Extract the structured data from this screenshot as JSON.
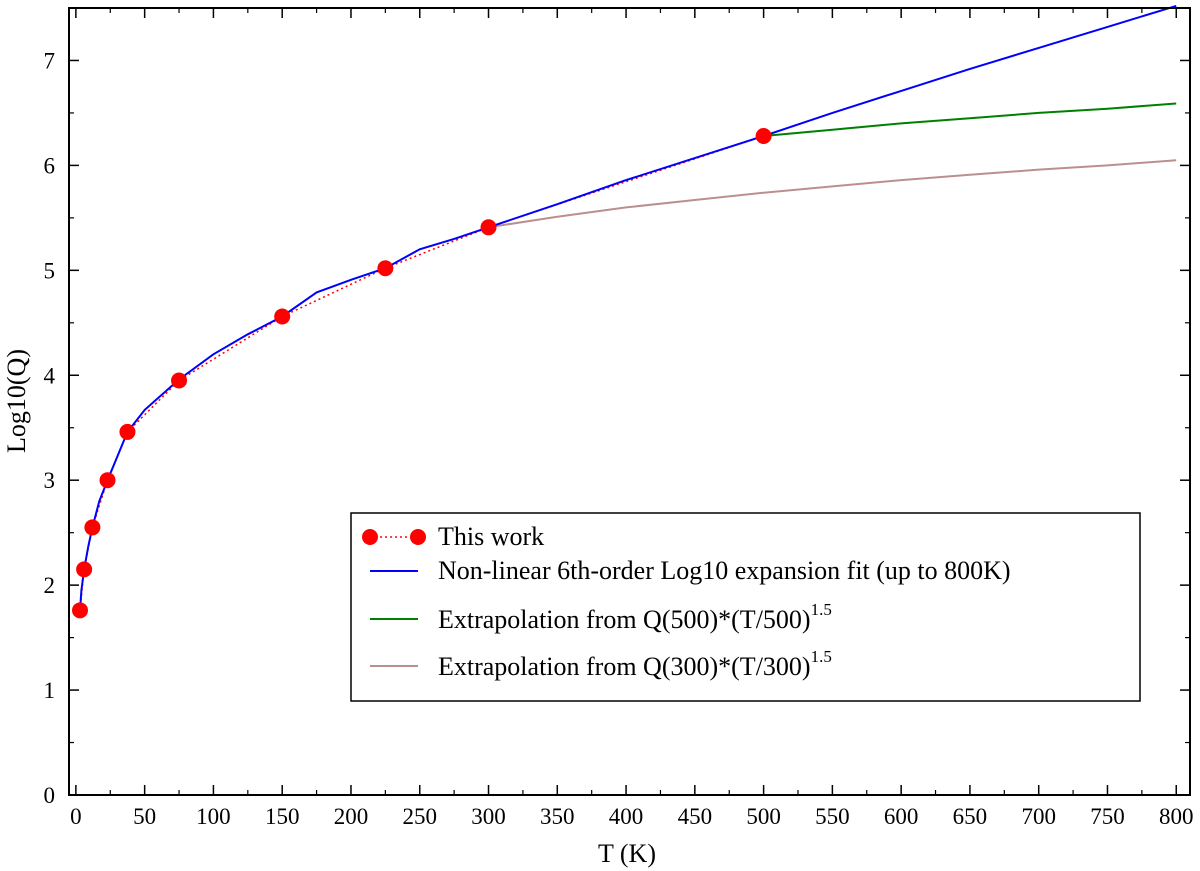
{
  "chart_data": {
    "type": "line",
    "title": "",
    "xlabel": "T (K)",
    "ylabel": "Log10(Q)",
    "xlim": [
      -5,
      810
    ],
    "ylim": [
      0,
      7.5
    ],
    "xticks": [
      0,
      50,
      100,
      150,
      200,
      250,
      300,
      350,
      400,
      450,
      500,
      550,
      600,
      650,
      700,
      750,
      800
    ],
    "yticks": [
      0,
      1,
      2,
      3,
      4,
      5,
      6,
      7
    ],
    "legend_position": "lower-right",
    "series": [
      {
        "name": "This work",
        "style": "markers-dotted",
        "color": "#ff0000",
        "x": [
          3,
          6,
          12,
          23,
          37.5,
          75,
          150,
          225,
          300,
          500
        ],
        "y": [
          1.76,
          2.15,
          2.55,
          3.0,
          3.46,
          3.95,
          4.56,
          5.02,
          5.41,
          6.28
        ]
      },
      {
        "name": "Non-linear 6th-order Log10 expansion fit (up to 800K)",
        "style": "line",
        "color": "#0000ff",
        "x": [
          3,
          4,
          6,
          9,
          12,
          17,
          23,
          30,
          37.5,
          50,
          75,
          100,
          125,
          150,
          175,
          200,
          225,
          250,
          275,
          300,
          350,
          400,
          450,
          500,
          550,
          600,
          650,
          700,
          750,
          800
        ],
        "y": [
          1.76,
          1.95,
          2.15,
          2.37,
          2.55,
          2.8,
          3.0,
          3.22,
          3.46,
          3.67,
          3.96,
          4.2,
          4.39,
          4.56,
          4.79,
          4.91,
          5.02,
          5.2,
          5.3,
          5.41,
          5.63,
          5.86,
          6.07,
          6.28,
          6.5,
          6.71,
          6.92,
          7.12,
          7.32,
          7.52
        ]
      },
      {
        "name": "Extrapolation from Q(500)*(T/500)",
        "name_superscript": "1.5",
        "style": "line",
        "color": "#008000",
        "x": [
          500,
          550,
          600,
          650,
          700,
          750,
          800
        ],
        "y": [
          6.28,
          6.34,
          6.4,
          6.45,
          6.5,
          6.54,
          6.59
        ]
      },
      {
        "name": "Extrapolation from Q(300)*(T/300)",
        "name_superscript": "1.5",
        "style": "line",
        "color": "#bc8f8f",
        "x": [
          300,
          350,
          400,
          450,
          500,
          550,
          600,
          650,
          700,
          750,
          800
        ],
        "y": [
          5.41,
          5.51,
          5.6,
          5.67,
          5.74,
          5.8,
          5.86,
          5.91,
          5.96,
          6.0,
          6.05
        ]
      }
    ]
  }
}
